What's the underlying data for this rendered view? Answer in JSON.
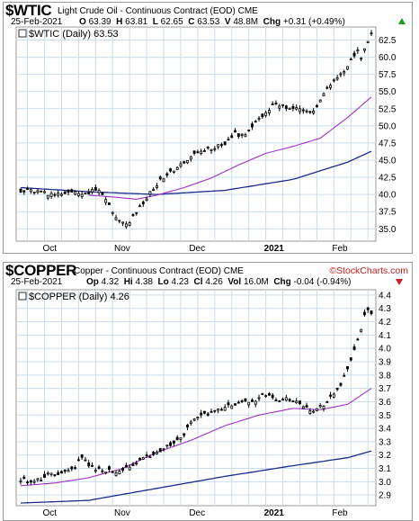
{
  "colors": {
    "grid": "#c9dced",
    "candle": "#000000",
    "ma_short": "#a030c8",
    "ma_long": "#1a2b8c",
    "up": "#1aa01a",
    "down": "#d11a1a"
  },
  "top_panel": {
    "symbol": "$WTIC",
    "name": "Light Crude Oil - Continuous Contract (EOD)  CME",
    "date": "25-Feb-2021",
    "stats": [
      {
        "label": "O",
        "value": "63.39"
      },
      {
        "label": "H",
        "value": "63.81"
      },
      {
        "label": "L",
        "value": "62.65"
      },
      {
        "label": "C",
        "value": "63.53"
      },
      {
        "label": "V",
        "value": "48.8M"
      },
      {
        "label": "Chg",
        "value": "+0.31 (+0.49%)"
      }
    ],
    "legend": "$WTIC (Daily) 63.53",
    "change_direction": "up"
  },
  "bottom_panel": {
    "symbol": "$COPPER",
    "name": "Copper - Continuous Contract (EOD)  CME",
    "logo": "©StockCharts.com",
    "date": "25-Feb-2021",
    "stats": [
      {
        "label": "Op",
        "value": "4.32"
      },
      {
        "label": "Hi",
        "value": "4.38"
      },
      {
        "label": "Lo",
        "value": "4.23"
      },
      {
        "label": "Cl",
        "value": "4.26"
      },
      {
        "label": "Vol",
        "value": "16.0M"
      },
      {
        "label": "Chg",
        "value": "-0.04 (-0.94%)"
      }
    ],
    "legend": "$COPPER (Daily) 4.26",
    "change_direction": "down"
  },
  "chart_data": [
    {
      "type": "candlestick",
      "title": "$WTIC Light Crude Oil - Continuous Contract (EOD) CME",
      "x_labels": [
        "Oct",
        "Nov",
        "Dec",
        "2021",
        "Feb"
      ],
      "y_ticks": [
        35.0,
        37.5,
        40.0,
        42.5,
        45.0,
        47.5,
        50.0,
        52.5,
        55.0,
        57.5,
        60.0,
        62.5
      ],
      "ylim": [
        33.2,
        64.4
      ],
      "bars": 104,
      "month_start_index": [
        7,
        28,
        50,
        72,
        92
      ],
      "close_anchors": [
        [
          0,
          40.6
        ],
        [
          10,
          40.0
        ],
        [
          20,
          40.3
        ],
        [
          23,
          40.8
        ],
        [
          28,
          36.8
        ],
        [
          31,
          35.5
        ],
        [
          36,
          38.8
        ],
        [
          40,
          41.5
        ],
        [
          43,
          43.0
        ],
        [
          48,
          44.6
        ],
        [
          52,
          46.2
        ],
        [
          56,
          46.8
        ],
        [
          60,
          47.2
        ],
        [
          63,
          48.8
        ],
        [
          66,
          48.5
        ],
        [
          69,
          50.5
        ],
        [
          72,
          52.0
        ],
        [
          74,
          53.0
        ],
        [
          78,
          52.8
        ],
        [
          82,
          52.3
        ],
        [
          86,
          52.0
        ],
        [
          88,
          54.0
        ],
        [
          91,
          56.0
        ],
        [
          94,
          57.5
        ],
        [
          97,
          59.5
        ],
        [
          99,
          61.0
        ],
        [
          100,
          60.0
        ],
        [
          101,
          61.5
        ],
        [
          103,
          63.53
        ]
      ],
      "ma_short_anchors": [
        [
          20,
          39.9
        ],
        [
          28,
          39.6
        ],
        [
          34,
          39.3
        ],
        [
          40,
          39.9
        ],
        [
          48,
          41.0
        ],
        [
          56,
          42.4
        ],
        [
          64,
          44.3
        ],
        [
          72,
          46.0
        ],
        [
          80,
          47.0
        ],
        [
          88,
          48.2
        ],
        [
          96,
          51.2
        ],
        [
          103,
          54.2
        ]
      ],
      "ma_long_anchors": [
        [
          0,
          41.0
        ],
        [
          20,
          40.4
        ],
        [
          40,
          40.0
        ],
        [
          60,
          40.6
        ],
        [
          80,
          42.2
        ],
        [
          96,
          44.7
        ],
        [
          103,
          46.3
        ]
      ]
    },
    {
      "type": "candlestick",
      "title": "$COPPER Copper - Continuous Contract (EOD) CME",
      "x_labels": [
        "Oct",
        "Nov",
        "Dec",
        "2021",
        "Feb"
      ],
      "y_ticks": [
        2.9,
        3.0,
        3.1,
        3.2,
        3.3,
        3.4,
        3.5,
        3.6,
        3.7,
        3.8,
        3.9,
        4.0,
        4.1,
        4.2,
        4.3,
        4.4
      ],
      "ylim": [
        2.82,
        4.44
      ],
      "bars": 104,
      "month_start_index": [
        7,
        28,
        50,
        72,
        92
      ],
      "close_anchors": [
        [
          0,
          3.02
        ],
        [
          4,
          3.0
        ],
        [
          8,
          3.05
        ],
        [
          12,
          3.06
        ],
        [
          16,
          3.12
        ],
        [
          18,
          3.18
        ],
        [
          20,
          3.12
        ],
        [
          24,
          3.08
        ],
        [
          28,
          3.08
        ],
        [
          32,
          3.12
        ],
        [
          36,
          3.18
        ],
        [
          40,
          3.22
        ],
        [
          44,
          3.28
        ],
        [
          48,
          3.35
        ],
        [
          50,
          3.45
        ],
        [
          52,
          3.48
        ],
        [
          56,
          3.52
        ],
        [
          60,
          3.55
        ],
        [
          64,
          3.6
        ],
        [
          68,
          3.6
        ],
        [
          72,
          3.66
        ],
        [
          75,
          3.6
        ],
        [
          78,
          3.62
        ],
        [
          82,
          3.58
        ],
        [
          86,
          3.52
        ],
        [
          90,
          3.6
        ],
        [
          94,
          3.72
        ],
        [
          96,
          3.85
        ],
        [
          98,
          3.98
        ],
        [
          100,
          4.15
        ],
        [
          101,
          4.25
        ],
        [
          102,
          4.3
        ],
        [
          103,
          4.26
        ]
      ],
      "ma_short_anchors": [
        [
          0,
          2.97
        ],
        [
          10,
          2.99
        ],
        [
          20,
          3.03
        ],
        [
          30,
          3.1
        ],
        [
          40,
          3.22
        ],
        [
          50,
          3.31
        ],
        [
          60,
          3.42
        ],
        [
          70,
          3.5
        ],
        [
          80,
          3.55
        ],
        [
          88,
          3.54
        ],
        [
          96,
          3.58
        ],
        [
          103,
          3.7
        ]
      ],
      "ma_long_anchors": [
        [
          0,
          2.84
        ],
        [
          20,
          2.86
        ],
        [
          40,
          2.95
        ],
        [
          60,
          3.04
        ],
        [
          80,
          3.12
        ],
        [
          96,
          3.18
        ],
        [
          103,
          3.23
        ]
      ]
    }
  ]
}
